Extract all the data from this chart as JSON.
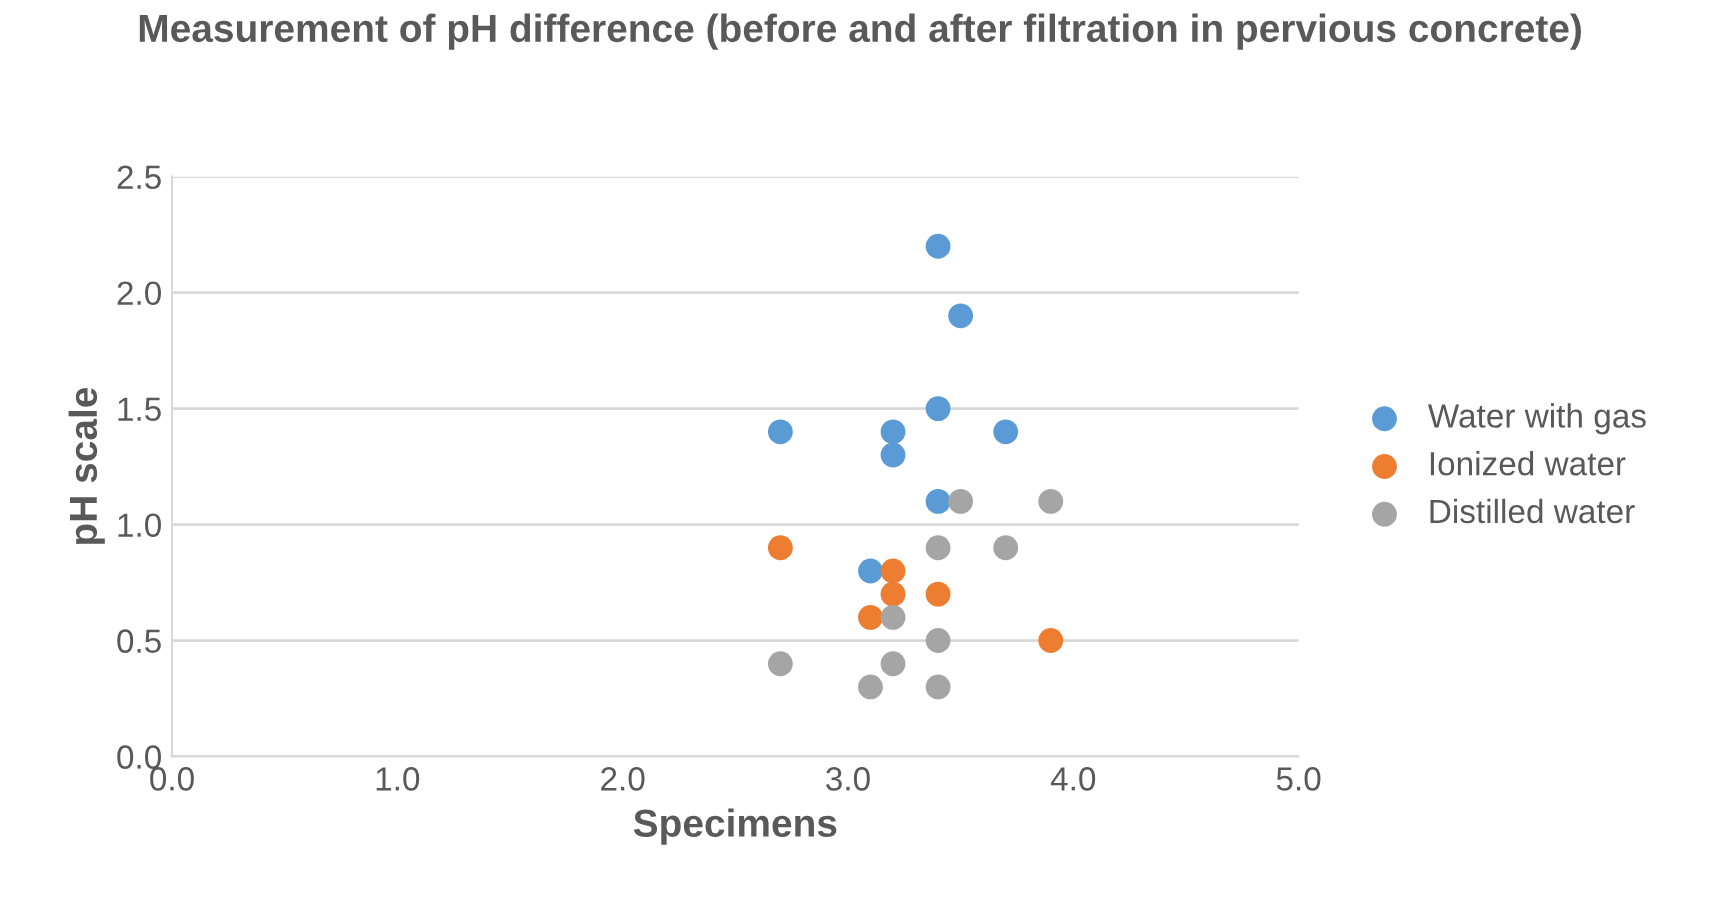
{
  "chart_data": {
    "type": "scatter",
    "title": "Measurement of pH difference (before and after filtration in pervious concrete)",
    "xlabel": "Specimens",
    "ylabel": "pH scale",
    "xlim": [
      0,
      5
    ],
    "xticks": [
      {
        "value": 0,
        "label": "0.0"
      },
      {
        "value": 1,
        "label": "1.0"
      },
      {
        "value": 2,
        "label": "2.0"
      },
      {
        "value": 3,
        "label": "3.0"
      },
      {
        "value": 4,
        "label": "4.0"
      },
      {
        "value": 5,
        "label": "5.0"
      }
    ],
    "ylim": [
      0,
      2.5
    ],
    "yticks": [
      {
        "value": 0,
        "label": "0.0"
      },
      {
        "value": 0.5,
        "label": "0.5"
      },
      {
        "value": 1,
        "label": "1.0"
      },
      {
        "value": 1.5,
        "label": "1.5"
      },
      {
        "value": 2,
        "label": "2.0"
      },
      {
        "value": 2.5,
        "label": "2.5"
      }
    ],
    "grid": "y",
    "legend": "right",
    "marker": "circle",
    "series": [
      {
        "name": "Water with gas",
        "color": "#5b9bd5",
        "x": [
          2.7,
          3.2,
          3.2,
          3.4,
          3.5,
          3.4,
          3.7,
          3.4,
          3.1
        ],
        "values": [
          1.4,
          1.4,
          1.3,
          2.2,
          1.9,
          1.5,
          1.4,
          1.1,
          0.8
        ]
      },
      {
        "name": "Ionized water",
        "color": "#ed7d31",
        "x": [
          2.7,
          3.2,
          3.2,
          3.1,
          3.4,
          3.9
        ],
        "values": [
          0.9,
          0.8,
          0.7,
          0.6,
          0.7,
          0.5
        ]
      },
      {
        "name": "Distilled water",
        "color": "#a5a5a5",
        "x": [
          3.5,
          3.9,
          3.4,
          3.7,
          3.2,
          3.4,
          2.7,
          3.2,
          3.1,
          3.4
        ],
        "values": [
          1.1,
          1.1,
          0.9,
          0.9,
          0.6,
          0.5,
          0.4,
          0.4,
          0.3,
          0.3
        ]
      }
    ]
  }
}
